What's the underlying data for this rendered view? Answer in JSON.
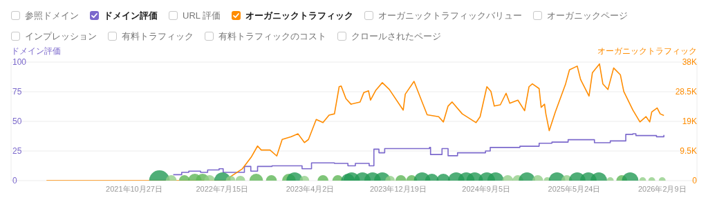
{
  "chart_data": {
    "type": "line",
    "ylabel": "ドメイン評価",
    "y2label": "オーガニックトラフィック",
    "annotations": [
      "参照ドメイン",
      "URL 評価",
      "オーガニックトラフィックバリュー",
      "オーガニックページ",
      "インプレッション",
      "有料トラフィック",
      "有料トラフィックのコスト",
      "クロールされたページ"
    ],
    "legend": "top left",
    "grid": "y",
    "xlim": [
      "2020-10-27",
      "2026-05-23"
    ],
    "xticks": [
      {
        "value": "2021-10-27",
        "label": "2021年10月27日"
      },
      {
        "value": "2022-07-15",
        "label": "2022年7月15日"
      },
      {
        "value": "2023-04-02",
        "label": "2023年4月2日"
      },
      {
        "value": "2023-12-19",
        "label": "2023年12月19日"
      },
      {
        "value": "2024-09-05",
        "label": "2024年9月5日"
      },
      {
        "value": "2025-05-24",
        "label": "2025年5月24日"
      },
      {
        "value": "2026-02-09",
        "label": "2026年2月9日"
      }
    ],
    "ylim": [
      0,
      100
    ],
    "yticks": [
      0,
      25,
      50,
      75,
      100
    ],
    "y2lim": [
      0,
      38000
    ],
    "y2ticks": [
      0,
      {
        "value": 9500,
        "label": "9.5K"
      },
      {
        "value": 19000,
        "label": "19K"
      },
      {
        "value": 28500,
        "label": "28.5K"
      },
      {
        "value": 38000,
        "label": "38K"
      }
    ],
    "series": [
      {
        "name": "ドメイン評価",
        "type": "step",
        "color": "#7b68cc",
        "x": [
          "2022-02-20",
          "2022-03-17",
          "2022-04-07",
          "2022-05-12",
          "2022-06-02",
          "2022-07-06",
          "2022-07-18",
          "2022-09-19",
          "2022-10-08",
          "2022-10-28",
          "2022-12-10",
          "2023-03-09",
          "2023-04-06",
          "2023-06-13",
          "2023-07-23",
          "2023-08-14",
          "2023-09-24",
          "2023-10-08",
          "2023-10-23",
          "2023-11-09",
          "2024-03-21",
          "2024-03-24",
          "2024-04-25",
          "2024-04-27",
          "2024-05-07",
          "2024-05-15",
          "2024-06-12",
          "2024-09-03",
          "2024-09-17",
          "2024-12-14",
          "2025-02-09",
          "2025-03-19",
          "2025-05-06",
          "2025-06-28",
          "2025-07-23",
          "2025-09-08",
          "2025-10-24",
          "2025-11-14",
          "2025-11-23",
          "2026-01-19",
          "2026-01-23",
          "2026-02-14"
        ],
        "values": [
          5,
          7,
          8,
          7,
          9,
          10,
          7,
          12,
          8,
          12,
          12.5,
          10,
          15,
          14.5,
          12.5,
          14.5,
          12.5,
          26.5,
          23.5,
          27,
          28,
          22,
          22,
          27,
          27,
          21,
          23.5,
          25,
          28,
          29,
          31.5,
          32.5,
          34.5,
          34.5,
          32,
          33.5,
          39,
          39.5,
          38,
          38,
          37,
          38.5
        ]
      },
      {
        "name": "オーガニックトラフィック",
        "type": "line",
        "axis": "y2",
        "color": "#ff8c00",
        "x": [
          "2021-02-09",
          "2022-08-02",
          "2022-08-09",
          "2022-09-13",
          "2022-10-09",
          "2022-10-28",
          "2022-11-08",
          "2022-12-04",
          "2022-12-24",
          "2023-01-09",
          "2023-02-05",
          "2023-02-25",
          "2023-03-16",
          "2023-03-28",
          "2023-04-20",
          "2023-05-10",
          "2023-05-28",
          "2023-06-13",
          "2023-06-27",
          "2023-07-03",
          "2023-07-17",
          "2023-08-01",
          "2023-08-28",
          "2023-09-08",
          "2023-09-22",
          "2023-09-28",
          "2023-10-14",
          "2023-11-02",
          "2023-11-23",
          "2024-01-03",
          "2024-01-09",
          "2024-02-04",
          "2024-02-28",
          "2024-03-14",
          "2024-04-17",
          "2024-05-01",
          "2024-05-15",
          "2024-05-27",
          "2024-06-26",
          "2024-08-06",
          "2024-08-18",
          "2024-09-07",
          "2024-09-19",
          "2024-09-29",
          "2024-10-17",
          "2024-11-03",
          "2024-11-14",
          "2024-12-08",
          "2024-12-28",
          "2025-01-10",
          "2025-01-20",
          "2025-02-09",
          "2025-02-15",
          "2025-02-25",
          "2025-03-01",
          "2025-03-11",
          "2025-03-29",
          "2025-04-16",
          "2025-04-28",
          "2025-05-10",
          "2025-06-02",
          "2025-06-12",
          "2025-07-07",
          "2025-07-17",
          "2025-08-07",
          "2025-08-17",
          "2025-09-01",
          "2025-09-18",
          "2025-10-08",
          "2025-10-18",
          "2025-11-14",
          "2025-12-05",
          "2025-12-23",
          "2026-01-03",
          "2026-01-09",
          "2026-01-25",
          "2026-02-03",
          "2026-02-14"
        ],
        "values": [
          0,
          0,
          1300,
          3800,
          7500,
          11100,
          9800,
          9800,
          7900,
          13200,
          14100,
          15000,
          12200,
          13200,
          19600,
          18600,
          21000,
          21400,
          30100,
          30300,
          26300,
          24500,
          25200,
          28200,
          28800,
          25800,
          29000,
          31400,
          29200,
          22600,
          27700,
          31800,
          25200,
          21100,
          20500,
          18800,
          23900,
          25200,
          21400,
          18600,
          20500,
          30100,
          28600,
          23900,
          24300,
          28000,
          24800,
          25800,
          22400,
          30100,
          31000,
          29500,
          23500,
          24500,
          21400,
          16000,
          22000,
          27300,
          30800,
          35500,
          36700,
          32400,
          27100,
          34600,
          37400,
          31000,
          29200,
          36100,
          33900,
          28600,
          22600,
          18800,
          20500,
          18800,
          22000,
          23300,
          21400,
          20900
        ]
      },
      {
        "type": "bubble",
        "x": [
          "2022-01-10",
          "2022-02-14",
          "2022-03-25",
          "2022-04-25",
          "2022-05-18",
          "2022-06-08",
          "2022-07-16",
          "2022-08-09",
          "2022-09-07",
          "2022-10-24",
          "2022-12-08",
          "2023-01-29",
          "2023-02-15",
          "2023-03-16",
          "2023-05-10",
          "2023-06-23",
          "2023-07-23",
          "2023-08-03",
          "2023-09-04",
          "2023-10-04",
          "2023-11-02",
          "2023-11-25",
          "2023-12-27",
          "2024-01-28",
          "2024-02-28",
          "2024-03-28",
          "2024-05-01",
          "2024-06-08",
          "2024-07-08",
          "2024-08-02",
          "2024-09-07",
          "2024-10-03",
          "2024-11-08",
          "2024-12-08",
          "2025-01-04",
          "2025-02-05",
          "2025-03-05",
          "2025-04-03",
          "2025-05-02",
          "2025-06-02",
          "2025-07-05",
          "2025-08-05",
          "2025-09-08",
          "2025-10-12",
          "2025-11-06",
          "2025-12-13",
          "2026-01-09",
          "2026-02-09"
        ],
        "values": [
          0,
          0,
          0,
          0,
          0,
          0,
          0,
          0,
          0,
          0,
          0,
          0,
          0,
          0,
          0,
          0,
          0,
          0,
          0,
          0,
          0,
          0,
          0,
          0,
          0,
          0,
          0,
          0,
          0,
          0,
          0,
          0,
          0,
          0,
          0,
          0,
          0,
          0,
          0,
          0,
          0,
          0,
          0,
          0,
          0,
          0,
          0,
          0
        ],
        "sizes": [
          1,
          0.28,
          0.28,
          0.44,
          0.44,
          0.28,
          0.64,
          0.22,
          0.22,
          0.44,
          0.28,
          0.44,
          0.64,
          0.22,
          0.28,
          0.28,
          0.44,
          0.64,
          0.64,
          0.64,
          0.64,
          0.22,
          0.28,
          0.28,
          0.64,
          0.44,
          0.44,
          0.64,
          0.64,
          0.64,
          0.64,
          0.64,
          0.28,
          0.28,
          0.64,
          0.28,
          0.11,
          0.64,
          0.28,
          0.64,
          0.64,
          0.64,
          0.11,
          0.28,
          0.64,
          0.11,
          0.11,
          0.11
        ],
        "colors": [
          "#239a55",
          "#94d08a",
          "#5fb657",
          "#5fb657",
          "#5fb657",
          "#94d08a",
          "#239a55",
          "#94d08a",
          "#94d08a",
          "#5fb657",
          "#5fb657",
          "#5fb657",
          "#239a55",
          "#94d08a",
          "#5fb657",
          "#5fb657",
          "#239a55",
          "#239a55",
          "#239a55",
          "#239a55",
          "#239a55",
          "#94d08a",
          "#5fb657",
          "#5fb657",
          "#239a55",
          "#239a55",
          "#239a55",
          "#239a55",
          "#239a55",
          "#239a55",
          "#239a55",
          "#239a55",
          "#94d08a",
          "#94d08a",
          "#239a55",
          "#94d08a",
          "#94d08a",
          "#239a55",
          "#94d08a",
          "#239a55",
          "#239a55",
          "#239a55",
          "#94d08a",
          "#5fb657",
          "#239a55",
          "#94d08a",
          "#94d08a",
          "#94d08a"
        ]
      }
    ]
  }
}
